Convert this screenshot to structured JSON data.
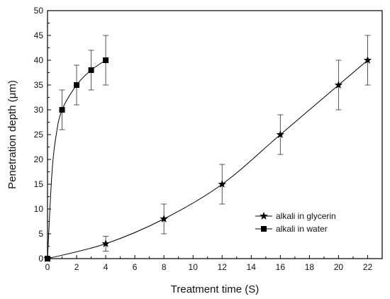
{
  "chart_data": {
    "type": "line",
    "title": "",
    "xlabel": "Treatment time (S)",
    "ylabel": "Penetration depth (μm)",
    "xlim": [
      0,
      23
    ],
    "ylim": [
      0,
      50
    ],
    "xticks": [
      0,
      2,
      4,
      6,
      8,
      10,
      12,
      14,
      16,
      18,
      20,
      22
    ],
    "yticks": [
      0,
      5,
      10,
      15,
      20,
      25,
      30,
      35,
      40,
      45,
      50
    ],
    "grid": false,
    "legend_position": "lower-right",
    "series": [
      {
        "name": "alkali in glycerin",
        "marker": "star",
        "x": [
          0,
          4,
          8,
          12,
          16,
          20,
          22
        ],
        "y": [
          0,
          3,
          8,
          15,
          25,
          35,
          40
        ],
        "error": [
          0,
          1.5,
          3,
          4,
          4,
          5,
          5
        ]
      },
      {
        "name": "alkali in water",
        "marker": "square",
        "x": [
          0,
          1,
          2,
          3,
          4
        ],
        "y": [
          0,
          30,
          35,
          38,
          40
        ],
        "error": [
          0,
          4,
          4,
          4,
          5
        ]
      }
    ],
    "line_color": "#000000"
  }
}
